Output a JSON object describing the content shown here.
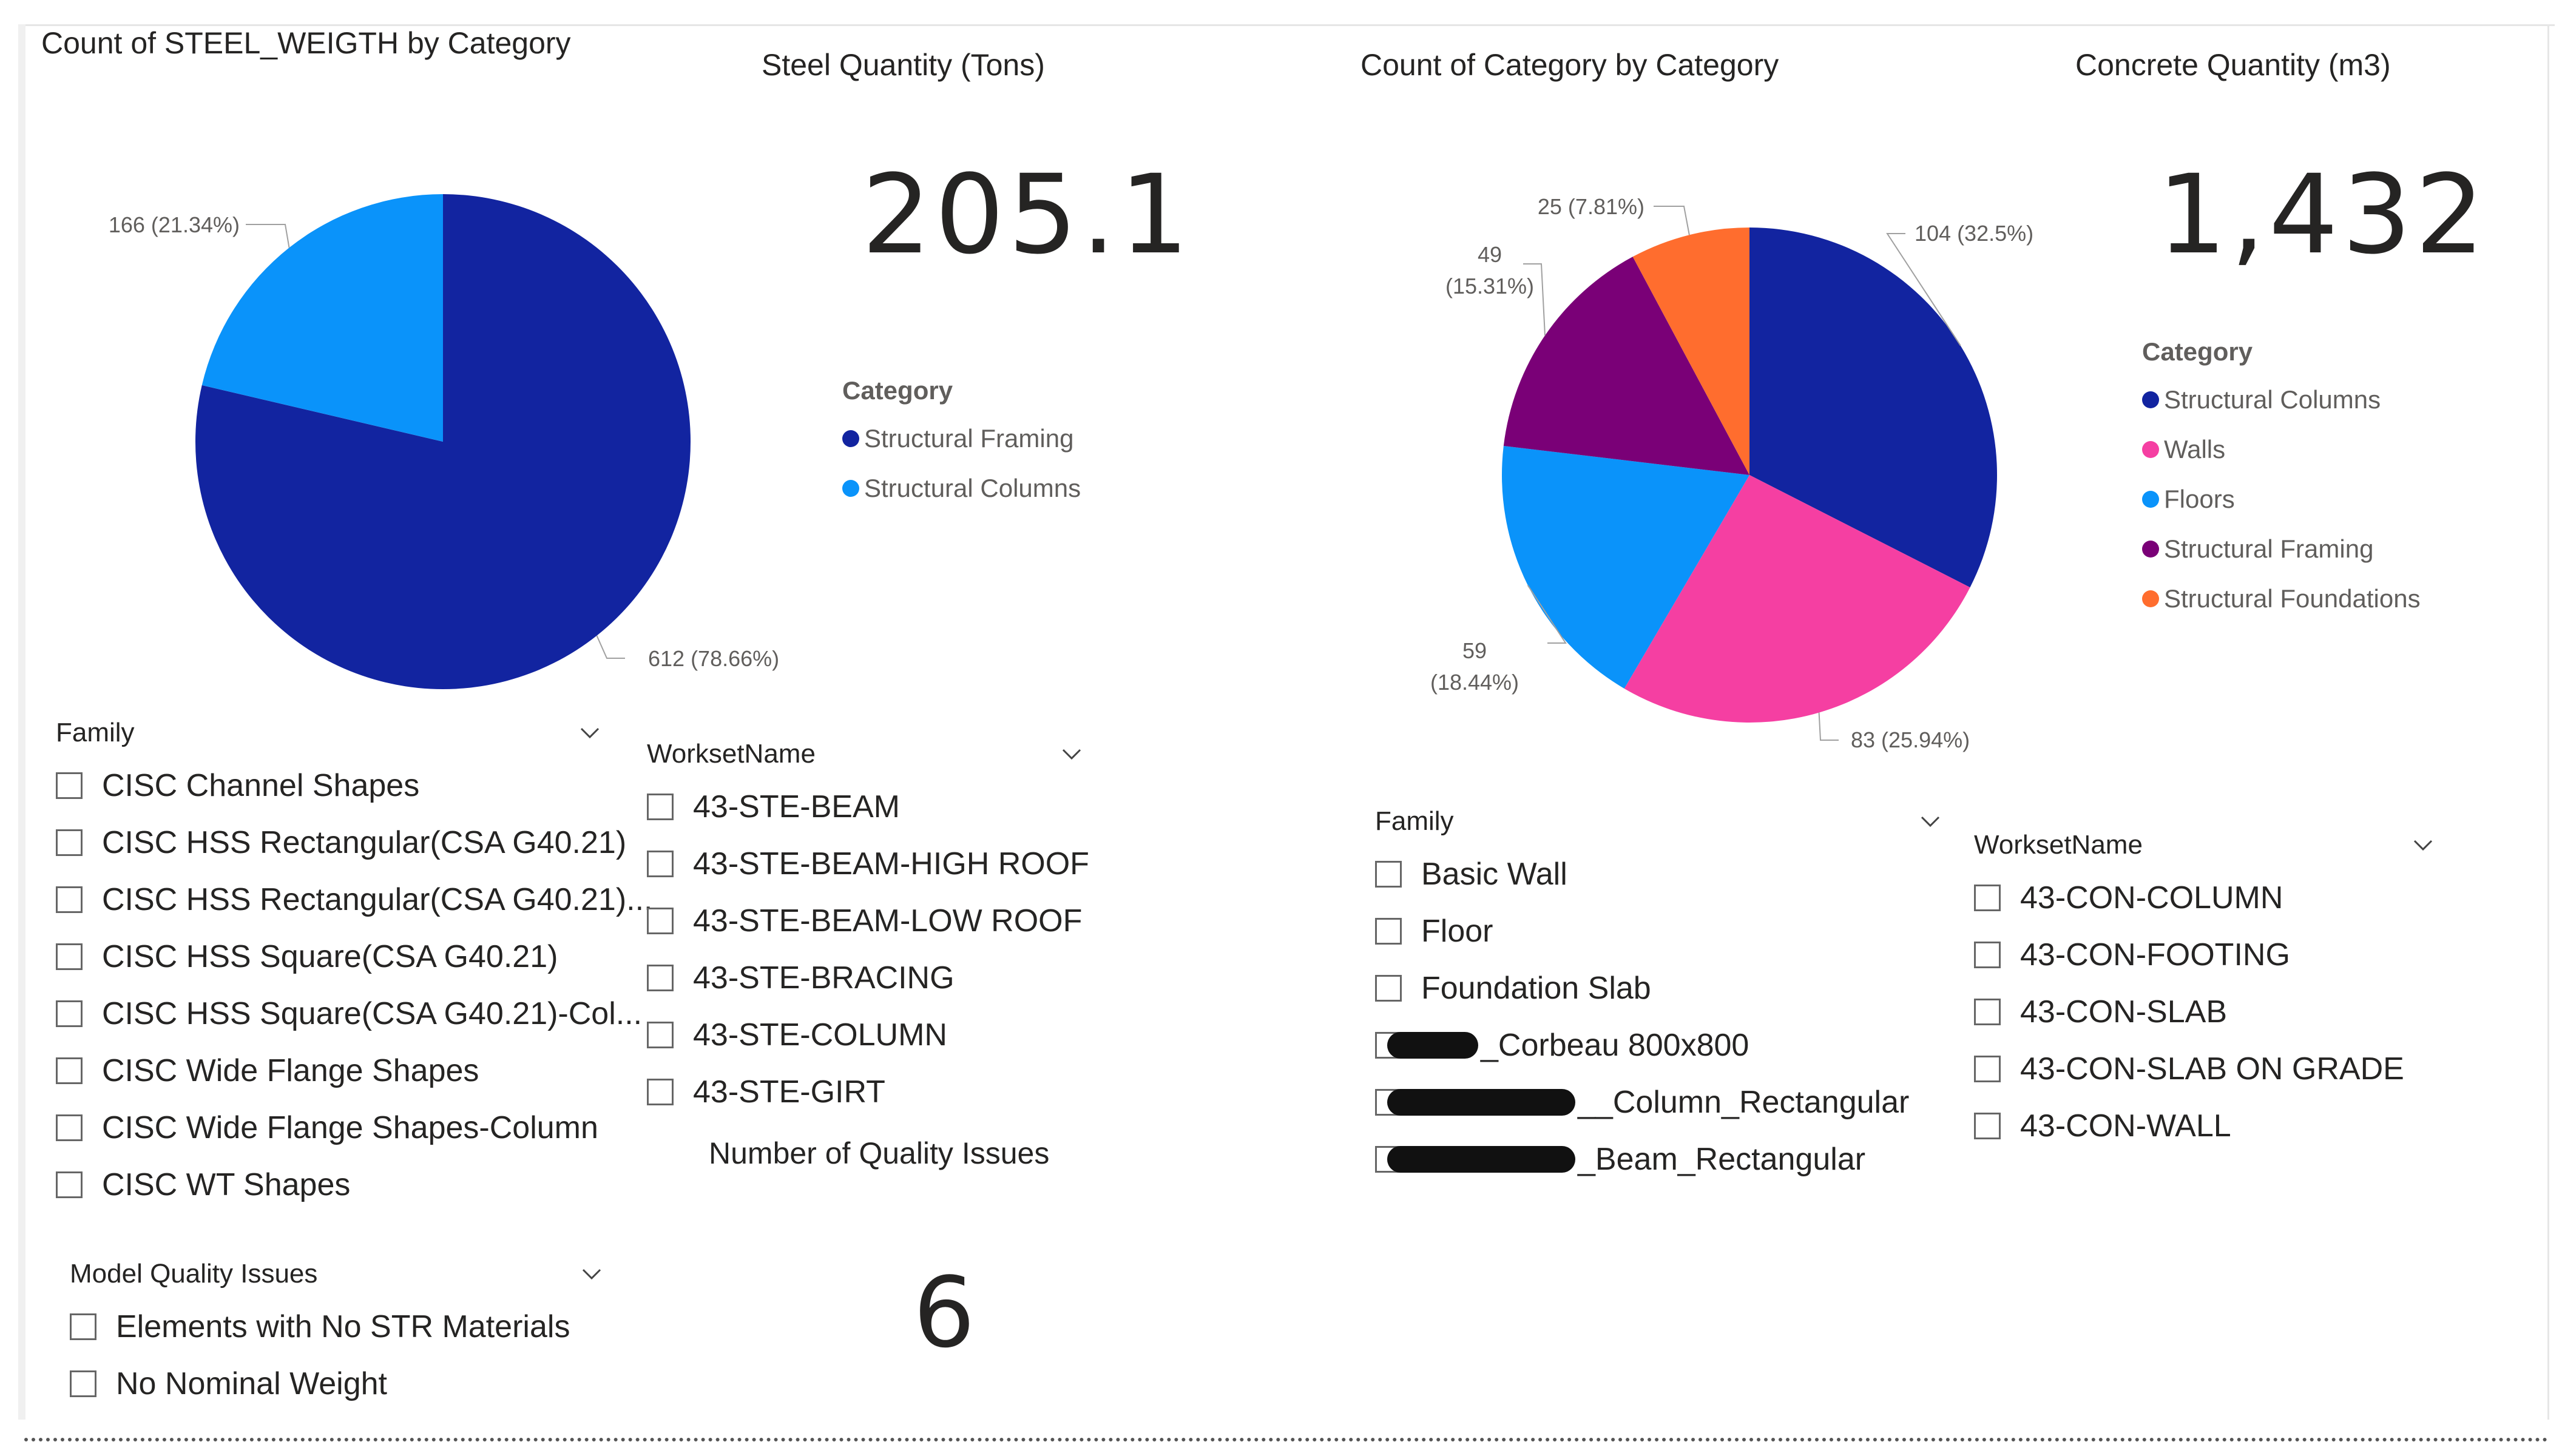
{
  "steel_pie": {
    "title": "Count of STEEL_WEIGTH by Category",
    "chart_data": {
      "type": "pie",
      "title": "Count of STEEL_WEIGTH by Category",
      "legend_title": "Category",
      "categories": [
        "Structural Framing",
        "Structural Columns"
      ],
      "values": [
        612,
        166
      ],
      "labels": [
        "612 (78.66%)",
        "166 (21.34%)"
      ],
      "colors": [
        "#1224A0",
        "#0A93FA"
      ]
    }
  },
  "steel_card": {
    "value": "205.1",
    "label": "Steel Quantity (Tons)"
  },
  "concrete_pie": {
    "title": "Count of Category by Category",
    "chart_data": {
      "type": "pie",
      "title": "Count of Category by Category",
      "legend_title": "Category",
      "categories": [
        "Structural Columns",
        "Walls",
        "Floors",
        "Structural Framing",
        "Structural Foundations"
      ],
      "values": [
        104,
        83,
        59,
        49,
        25
      ],
      "labels": [
        "104 (32.5%)",
        "83 (25.94%)",
        "59 (18.44%)",
        "49 (15.31%)",
        "25 (7.81%)"
      ],
      "colors": [
        "#1224A0",
        "#F53FA2",
        "#0A93FA",
        "#7A0077",
        "#FF6D2E"
      ]
    }
  },
  "concrete_card": {
    "value": "1,432",
    "label": "Concrete Quantity (m3)"
  },
  "quality_card": {
    "value": "6",
    "label": "Number of Quality Issues"
  },
  "steel_family_slicer": {
    "header": "Family",
    "items": [
      "CISC Channel Shapes",
      "CISC HSS Rectangular(CSA G40.21)",
      "CISC HSS Rectangular(CSA G40.21)...",
      "CISC HSS Square(CSA G40.21)",
      "CISC HSS Square(CSA G40.21)-Col...",
      "CISC Wide Flange Shapes",
      "CISC Wide Flange Shapes-Column",
      "CISC WT Shapes"
    ]
  },
  "steel_workset_slicer": {
    "header": "WorksetName",
    "items": [
      "43-STE-BEAM",
      "43-STE-BEAM-HIGH ROOF",
      "43-STE-BEAM-LOW ROOF",
      "43-STE-BRACING",
      "43-STE-COLUMN",
      "43-STE-GIRT"
    ]
  },
  "quality_slicer": {
    "header": "Model Quality Issues",
    "items": [
      "Elements with No STR Materials",
      "No Nominal Weight"
    ]
  },
  "concrete_family_slicer": {
    "header": "Family",
    "items": [
      "Basic Wall",
      "Floor",
      "Foundation Slab",
      "_Corbeau 800x800",
      "__Column_Rectangular",
      "_Beam_Rectangular"
    ]
  },
  "concrete_workset_slicer": {
    "header": "WorksetName",
    "items": [
      "43-CON-COLUMN",
      "43-CON-FOOTING",
      "43-CON-SLAB",
      "43-CON-SLAB ON GRADE",
      "43-CON-WALL"
    ]
  },
  "icons": {
    "dropdown": "chevron-down-icon",
    "checkbox": "checkbox-icon",
    "legend_marker": "legend-dot-icon"
  }
}
